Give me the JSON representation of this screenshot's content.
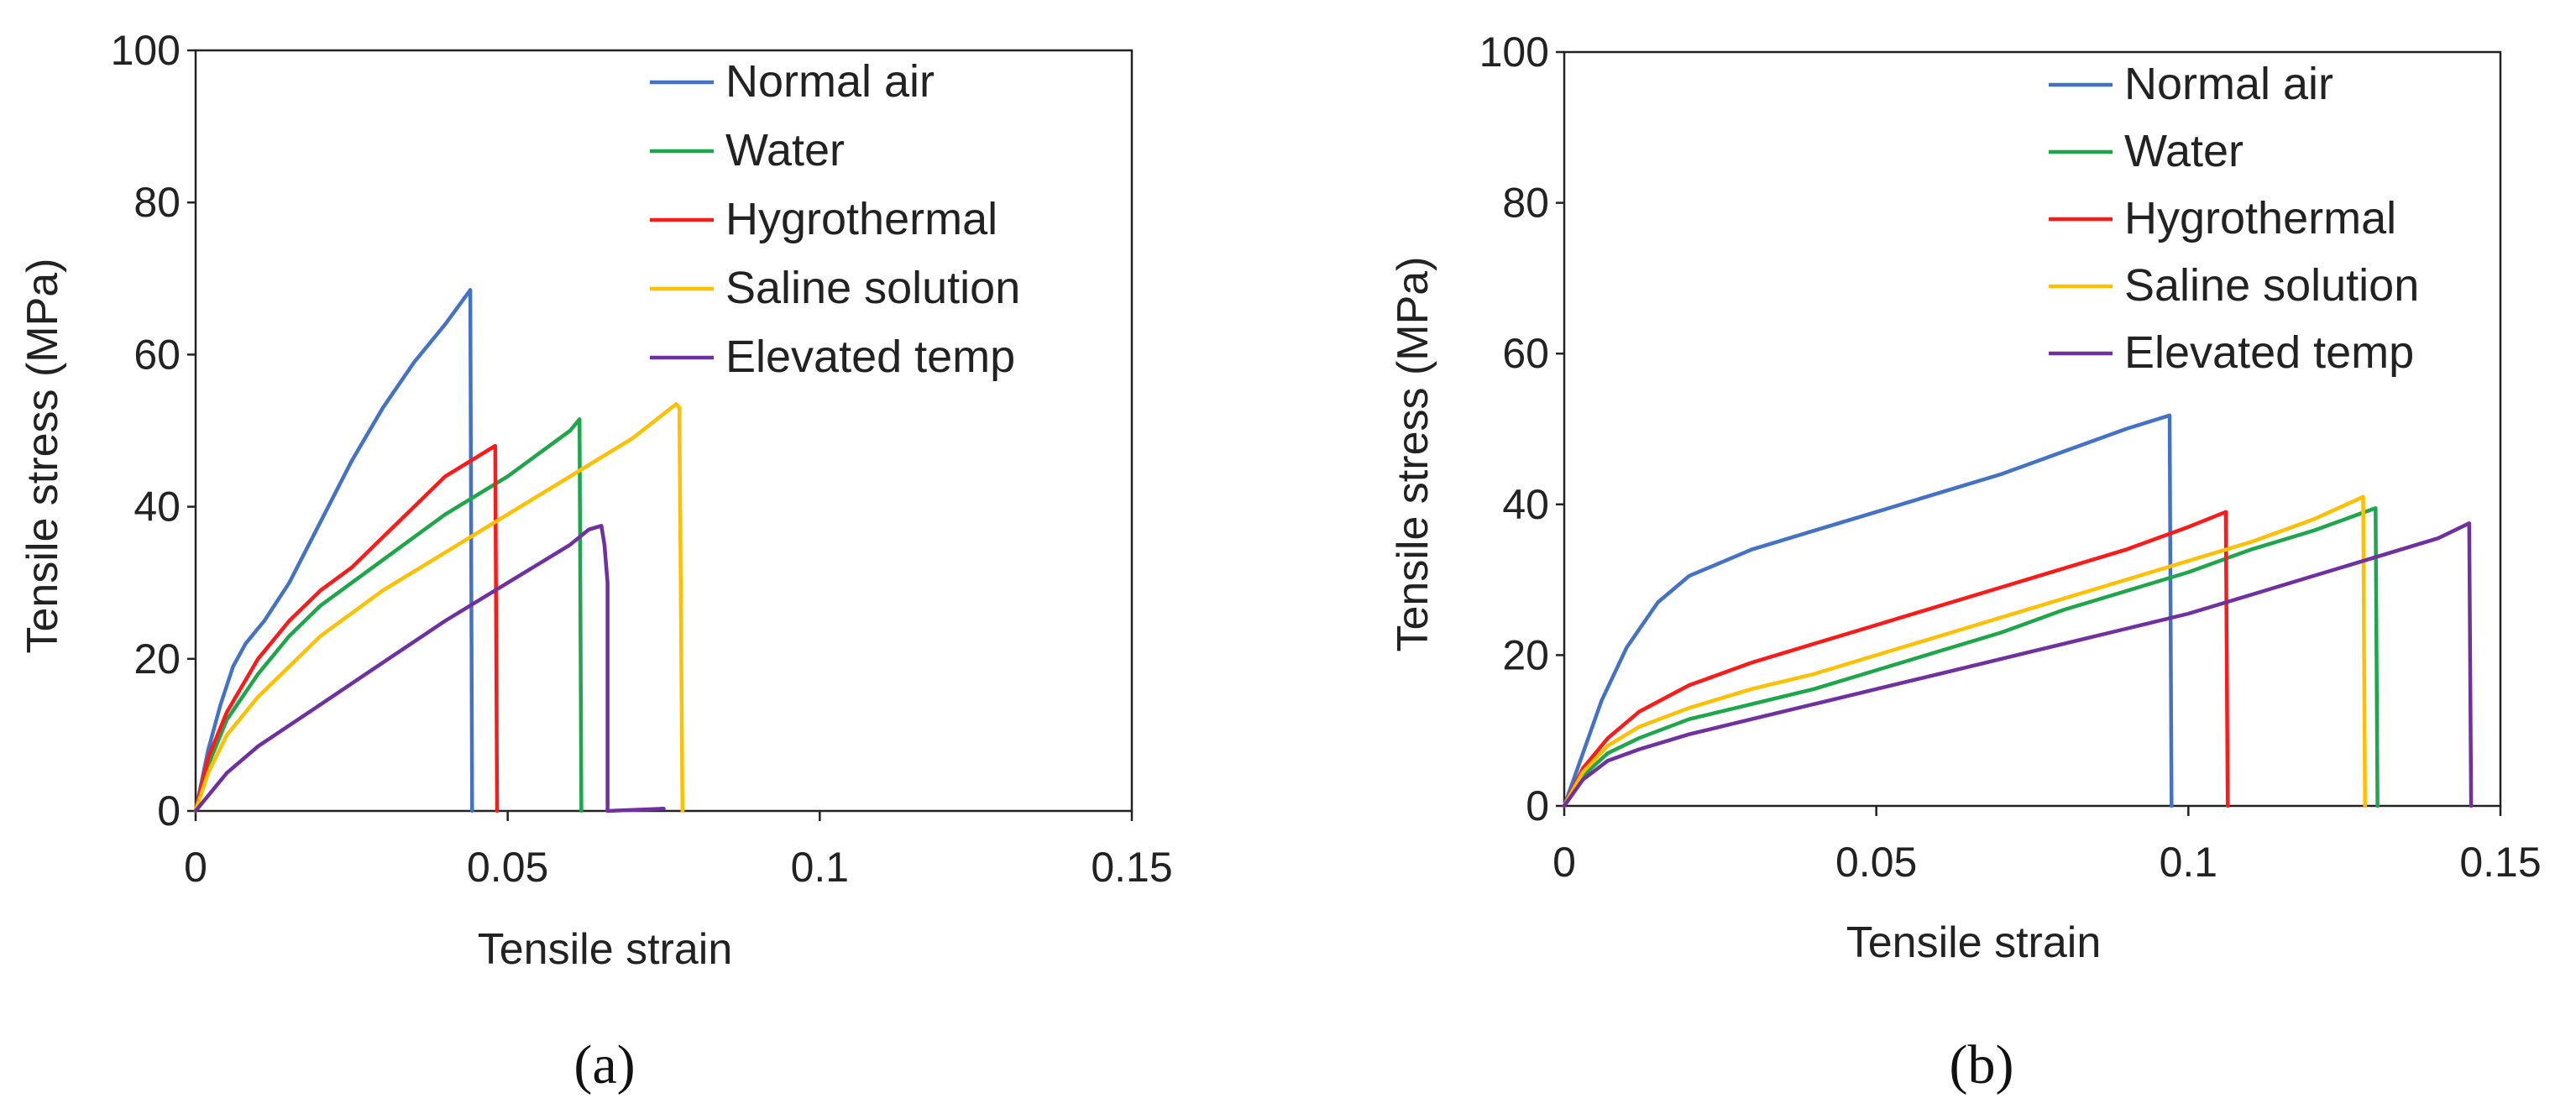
{
  "chart_data": [
    {
      "type": "line",
      "panel_label": "(a)",
      "xlabel": "Tensile strain",
      "ylabel": "Tensile stress (MPa)",
      "xlim": [
        0,
        0.15
      ],
      "ylim": [
        0,
        100
      ],
      "xticks": [
        0,
        0.05,
        0.1,
        0.15
      ],
      "xtick_labels": [
        "0",
        "0.05",
        "0.1",
        "0.15"
      ],
      "yticks": [
        0,
        20,
        40,
        60,
        80,
        100
      ],
      "ytick_labels": [
        "0",
        "20",
        "40",
        "60",
        "80",
        "100"
      ],
      "legend_position": "top-right",
      "series": [
        {
          "name": "Normal air",
          "color": "#4472C4",
          "points": [
            [
              0,
              0
            ],
            [
              0.002,
              8
            ],
            [
              0.004,
              14
            ],
            [
              0.006,
              19
            ],
            [
              0.008,
              22
            ],
            [
              0.011,
              25
            ],
            [
              0.015,
              30
            ],
            [
              0.02,
              38
            ],
            [
              0.025,
              46
            ],
            [
              0.03,
              53
            ],
            [
              0.035,
              59
            ],
            [
              0.04,
              64
            ],
            [
              0.044,
              68.5
            ],
            [
              0.0443,
              0
            ]
          ]
        },
        {
          "name": "Water",
          "color": "#1EA64B",
          "points": [
            [
              0,
              0
            ],
            [
              0.002,
              6
            ],
            [
              0.005,
              12
            ],
            [
              0.01,
              18
            ],
            [
              0.015,
              23
            ],
            [
              0.02,
              27
            ],
            [
              0.03,
              33
            ],
            [
              0.04,
              39
            ],
            [
              0.05,
              44
            ],
            [
              0.06,
              50
            ],
            [
              0.0615,
              51.5
            ],
            [
              0.0618,
              0
            ]
          ]
        },
        {
          "name": "Hygrothermal",
          "color": "#FF1A1A",
          "points": [
            [
              0,
              0
            ],
            [
              0.002,
              7
            ],
            [
              0.005,
              13
            ],
            [
              0.01,
              20
            ],
            [
              0.015,
              25
            ],
            [
              0.02,
              29
            ],
            [
              0.025,
              32
            ],
            [
              0.03,
              36
            ],
            [
              0.035,
              40
            ],
            [
              0.04,
              44
            ],
            [
              0.045,
              46.5
            ],
            [
              0.048,
              48
            ],
            [
              0.0483,
              0
            ]
          ]
        },
        {
          "name": "Saline solution",
          "color": "#FFC000",
          "points": [
            [
              0,
              0
            ],
            [
              0.002,
              5
            ],
            [
              0.005,
              10
            ],
            [
              0.01,
              15
            ],
            [
              0.015,
              19
            ],
            [
              0.02,
              23
            ],
            [
              0.03,
              29
            ],
            [
              0.04,
              34
            ],
            [
              0.05,
              39
            ],
            [
              0.06,
              44
            ],
            [
              0.07,
              49
            ],
            [
              0.077,
              53.5
            ],
            [
              0.0775,
              53
            ],
            [
              0.078,
              0
            ]
          ]
        },
        {
          "name": "Elevated temp",
          "color": "#7030A0",
          "points": [
            [
              0,
              0
            ],
            [
              0.005,
              5
            ],
            [
              0.01,
              8.5
            ],
            [
              0.02,
              14
            ],
            [
              0.03,
              19.5
            ],
            [
              0.04,
              25
            ],
            [
              0.05,
              30
            ],
            [
              0.06,
              35
            ],
            [
              0.063,
              37
            ],
            [
              0.065,
              37.5
            ],
            [
              0.0655,
              35
            ],
            [
              0.066,
              30
            ],
            [
              0.066,
              0
            ],
            [
              0.075,
              0.3
            ]
          ]
        }
      ]
    },
    {
      "type": "line",
      "panel_label": "(b)",
      "xlabel": "Tensile strain",
      "ylabel": "Tensile stress (MPa)",
      "xlim": [
        0,
        0.15
      ],
      "ylim": [
        0,
        100
      ],
      "xticks": [
        0,
        0.05,
        0.1,
        0.15
      ],
      "xtick_labels": [
        "0",
        "0.05",
        "0.1",
        "0.15"
      ],
      "yticks": [
        0,
        20,
        40,
        60,
        80,
        100
      ],
      "ytick_labels": [
        "0",
        "20",
        "40",
        "60",
        "80",
        "100"
      ],
      "legend_position": "top-right",
      "series": [
        {
          "name": "Normal air",
          "color": "#4472C4",
          "points": [
            [
              0,
              0
            ],
            [
              0.003,
              7
            ],
            [
              0.006,
              14
            ],
            [
              0.01,
              21
            ],
            [
              0.015,
              27
            ],
            [
              0.02,
              30.5
            ],
            [
              0.03,
              34
            ],
            [
              0.04,
              36.5
            ],
            [
              0.05,
              39
            ],
            [
              0.06,
              41.5
            ],
            [
              0.07,
              44
            ],
            [
              0.08,
              47
            ],
            [
              0.09,
              50
            ],
            [
              0.097,
              51.8
            ],
            [
              0.0973,
              0
            ]
          ]
        },
        {
          "name": "Water",
          "color": "#1EA64B",
          "points": [
            [
              0,
              0
            ],
            [
              0.003,
              4
            ],
            [
              0.007,
              7
            ],
            [
              0.012,
              9
            ],
            [
              0.02,
              11.5
            ],
            [
              0.03,
              13.5
            ],
            [
              0.04,
              15.5
            ],
            [
              0.05,
              18
            ],
            [
              0.06,
              20.5
            ],
            [
              0.07,
              23
            ],
            [
              0.08,
              26
            ],
            [
              0.09,
              28.5
            ],
            [
              0.1,
              31
            ],
            [
              0.11,
              34
            ],
            [
              0.12,
              36.5
            ],
            [
              0.13,
              39.5
            ],
            [
              0.1303,
              0
            ]
          ]
        },
        {
          "name": "Hygrothermal",
          "color": "#FF1A1A",
          "points": [
            [
              0,
              0
            ],
            [
              0.003,
              5
            ],
            [
              0.007,
              9
            ],
            [
              0.012,
              12.5
            ],
            [
              0.02,
              16
            ],
            [
              0.03,
              19
            ],
            [
              0.04,
              21.5
            ],
            [
              0.05,
              24
            ],
            [
              0.06,
              26.5
            ],
            [
              0.07,
              29
            ],
            [
              0.08,
              31.5
            ],
            [
              0.09,
              34
            ],
            [
              0.1,
              37
            ],
            [
              0.106,
              39
            ],
            [
              0.1063,
              0
            ]
          ]
        },
        {
          "name": "Saline solution",
          "color": "#FFC000",
          "points": [
            [
              0,
              0
            ],
            [
              0.003,
              4.5
            ],
            [
              0.007,
              8
            ],
            [
              0.012,
              10.5
            ],
            [
              0.02,
              13
            ],
            [
              0.03,
              15.5
            ],
            [
              0.04,
              17.5
            ],
            [
              0.05,
              20
            ],
            [
              0.06,
              22.5
            ],
            [
              0.07,
              25
            ],
            [
              0.08,
              27.5
            ],
            [
              0.09,
              30
            ],
            [
              0.1,
              32.5
            ],
            [
              0.11,
              35
            ],
            [
              0.12,
              38
            ],
            [
              0.128,
              41
            ],
            [
              0.1283,
              0
            ]
          ]
        },
        {
          "name": "Elevated temp",
          "color": "#7030A0",
          "points": [
            [
              0,
              0
            ],
            [
              0.003,
              3.5
            ],
            [
              0.007,
              6
            ],
            [
              0.012,
              7.5
            ],
            [
              0.02,
              9.5
            ],
            [
              0.03,
              11.5
            ],
            [
              0.04,
              13.5
            ],
            [
              0.05,
              15.5
            ],
            [
              0.06,
              17.5
            ],
            [
              0.07,
              19.5
            ],
            [
              0.08,
              21.5
            ],
            [
              0.09,
              23.5
            ],
            [
              0.1,
              25.5
            ],
            [
              0.11,
              28
            ],
            [
              0.12,
              30.5
            ],
            [
              0.13,
              33
            ],
            [
              0.14,
              35.5
            ],
            [
              0.145,
              37.5
            ],
            [
              0.1453,
              0
            ]
          ]
        }
      ]
    }
  ]
}
